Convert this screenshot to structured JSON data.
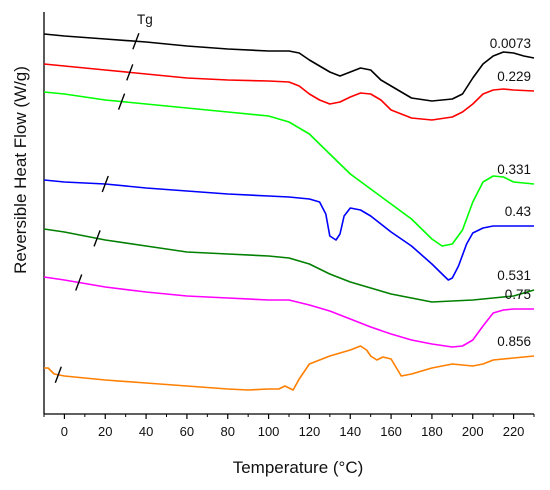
{
  "chart_data": {
    "type": "line",
    "title": "",
    "xlabel": "Temperature (°C)",
    "ylabel": "Reversible Heat Flow (W/g)",
    "xlim": [
      -10,
      230
    ],
    "xticks": [
      0,
      20,
      40,
      60,
      80,
      100,
      120,
      140,
      160,
      180,
      200,
      220
    ],
    "tick_labels": [
      "0",
      "20",
      "40",
      "60",
      "80",
      "100",
      "120",
      "140",
      "160",
      "180",
      "200",
      "220"
    ],
    "y_tick_labels_shown": false,
    "grid": false,
    "legend": "none (series labelled at right end)",
    "annotation": "Tg",
    "series": [
      {
        "name": "0.0073",
        "color": "#000000",
        "tg": 35,
        "points": [
          [
            -10,
            0
          ],
          [
            0,
            2
          ],
          [
            20,
            5
          ],
          [
            40,
            8
          ],
          [
            60,
            12
          ],
          [
            80,
            15
          ],
          [
            100,
            17
          ],
          [
            110,
            17
          ],
          [
            115,
            19
          ],
          [
            120,
            26
          ],
          [
            130,
            38
          ],
          [
            135,
            42
          ],
          [
            140,
            38
          ],
          [
            145,
            34
          ],
          [
            150,
            36
          ],
          [
            155,
            46
          ],
          [
            160,
            52
          ],
          [
            170,
            64
          ],
          [
            180,
            67
          ],
          [
            190,
            65
          ],
          [
            195,
            60
          ],
          [
            200,
            44
          ],
          [
            205,
            30
          ],
          [
            210,
            22
          ],
          [
            215,
            18
          ],
          [
            220,
            19
          ],
          [
            225,
            22
          ],
          [
            230,
            24
          ]
        ]
      },
      {
        "name": "0.229",
        "color": "#ff0000",
        "tg": 32,
        "points": [
          [
            -10,
            30
          ],
          [
            0,
            32
          ],
          [
            20,
            36
          ],
          [
            40,
            40
          ],
          [
            60,
            44
          ],
          [
            80,
            46
          ],
          [
            100,
            47
          ],
          [
            110,
            48
          ],
          [
            115,
            52
          ],
          [
            120,
            60
          ],
          [
            125,
            66
          ],
          [
            130,
            70
          ],
          [
            135,
            68
          ],
          [
            140,
            63
          ],
          [
            145,
            59
          ],
          [
            150,
            60
          ],
          [
            155,
            66
          ],
          [
            160,
            76
          ],
          [
            170,
            84
          ],
          [
            180,
            86
          ],
          [
            190,
            83
          ],
          [
            195,
            78
          ],
          [
            200,
            70
          ],
          [
            205,
            60
          ],
          [
            210,
            56
          ],
          [
            215,
            55
          ],
          [
            220,
            56
          ],
          [
            230,
            57
          ]
        ]
      },
      {
        "name": "0.331",
        "color": "#00ff00",
        "tg": 28,
        "points": [
          [
            -10,
            58
          ],
          [
            0,
            60
          ],
          [
            20,
            66
          ],
          [
            40,
            70
          ],
          [
            60,
            74
          ],
          [
            80,
            78
          ],
          [
            100,
            82
          ],
          [
            110,
            88
          ],
          [
            120,
            100
          ],
          [
            130,
            120
          ],
          [
            140,
            140
          ],
          [
            150,
            155
          ],
          [
            160,
            170
          ],
          [
            170,
            185
          ],
          [
            180,
            205
          ],
          [
            185,
            212
          ],
          [
            190,
            210
          ],
          [
            195,
            196
          ],
          [
            200,
            168
          ],
          [
            205,
            148
          ],
          [
            210,
            142
          ],
          [
            215,
            143
          ],
          [
            220,
            148
          ],
          [
            230,
            150
          ]
        ]
      },
      {
        "name": "0.43",
        "color": "#0000ff",
        "tg": 20,
        "points": [
          [
            -10,
            146
          ],
          [
            0,
            148
          ],
          [
            20,
            150
          ],
          [
            40,
            154
          ],
          [
            60,
            157
          ],
          [
            80,
            160
          ],
          [
            100,
            162
          ],
          [
            110,
            163
          ],
          [
            120,
            165
          ],
          [
            125,
            168
          ],
          [
            128,
            180
          ],
          [
            130,
            202
          ],
          [
            133,
            206
          ],
          [
            135,
            200
          ],
          [
            137,
            182
          ],
          [
            140,
            174
          ],
          [
            145,
            176
          ],
          [
            150,
            182
          ],
          [
            155,
            190
          ],
          [
            160,
            198
          ],
          [
            170,
            212
          ],
          [
            180,
            230
          ],
          [
            185,
            240
          ],
          [
            188,
            246
          ],
          [
            190,
            244
          ],
          [
            193,
            232
          ],
          [
            197,
            210
          ],
          [
            200,
            199
          ],
          [
            205,
            194
          ],
          [
            210,
            192
          ],
          [
            220,
            192
          ],
          [
            230,
            192
          ]
        ]
      },
      {
        "name": "0.531",
        "color": "#007f00",
        "tg": 16,
        "points": [
          [
            -10,
            195
          ],
          [
            0,
            198
          ],
          [
            20,
            206
          ],
          [
            40,
            212
          ],
          [
            60,
            218
          ],
          [
            80,
            220
          ],
          [
            100,
            222
          ],
          [
            110,
            224
          ],
          [
            120,
            230
          ],
          [
            130,
            240
          ],
          [
            140,
            248
          ],
          [
            150,
            254
          ],
          [
            160,
            260
          ],
          [
            170,
            264
          ],
          [
            180,
            268
          ],
          [
            190,
            267
          ],
          [
            200,
            266
          ],
          [
            210,
            264
          ],
          [
            220,
            262
          ],
          [
            230,
            256
          ]
        ]
      },
      {
        "name": "0.75",
        "color": "#ff00ff",
        "tg": 7,
        "points": [
          [
            -10,
            243
          ],
          [
            0,
            246
          ],
          [
            20,
            253
          ],
          [
            40,
            258
          ],
          [
            60,
            262
          ],
          [
            80,
            264
          ],
          [
            100,
            266
          ],
          [
            110,
            266
          ],
          [
            120,
            271
          ],
          [
            130,
            277
          ],
          [
            140,
            285
          ],
          [
            150,
            293
          ],
          [
            160,
            300
          ],
          [
            170,
            306
          ],
          [
            180,
            310
          ],
          [
            190,
            313
          ],
          [
            195,
            312
          ],
          [
            200,
            306
          ],
          [
            205,
            292
          ],
          [
            210,
            279
          ],
          [
            215,
            276
          ],
          [
            220,
            275
          ],
          [
            230,
            275
          ]
        ]
      },
      {
        "name": "0.856",
        "color": "#ff7f00",
        "tg": -3,
        "points": [
          [
            -10,
            334
          ],
          [
            -8,
            334
          ],
          [
            -5,
            340
          ],
          [
            0,
            342
          ],
          [
            20,
            346
          ],
          [
            40,
            349
          ],
          [
            60,
            352
          ],
          [
            80,
            355
          ],
          [
            90,
            356
          ],
          [
            100,
            355
          ],
          [
            105,
            355
          ],
          [
            108,
            352
          ],
          [
            112,
            356
          ],
          [
            115,
            345
          ],
          [
            120,
            330
          ],
          [
            130,
            322
          ],
          [
            140,
            316
          ],
          [
            145,
            312
          ],
          [
            148,
            316
          ],
          [
            150,
            322
          ],
          [
            153,
            326
          ],
          [
            156,
            323
          ],
          [
            160,
            325
          ],
          [
            165,
            342
          ],
          [
            170,
            340
          ],
          [
            180,
            334
          ],
          [
            190,
            330
          ],
          [
            200,
            332
          ],
          [
            205,
            330
          ],
          [
            210,
            326
          ],
          [
            220,
            324
          ],
          [
            230,
            322
          ]
        ]
      }
    ]
  }
}
